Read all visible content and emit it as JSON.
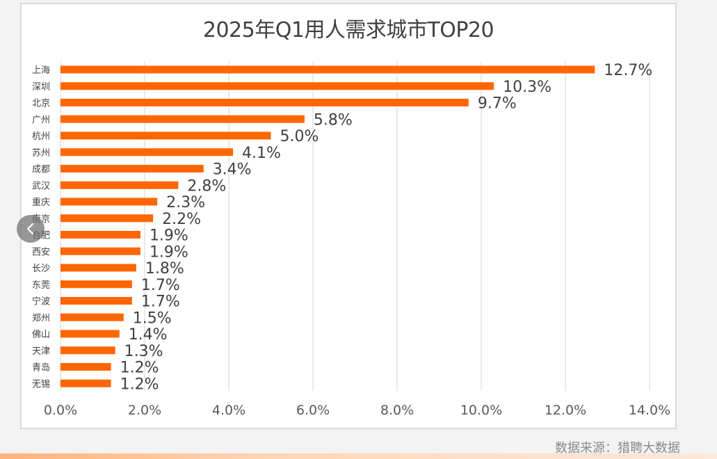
{
  "source_note": "数据来源：猎聘大数据",
  "chart_data": {
    "type": "bar",
    "orientation": "horizontal",
    "title": "2025年Q1用人需求城市TOP20",
    "categories": [
      "上海",
      "深圳",
      "北京",
      "广州",
      "杭州",
      "苏州",
      "成都",
      "武汉",
      "重庆",
      "南京",
      "合肥",
      "西安",
      "长沙",
      "东莞",
      "宁波",
      "郑州",
      "佛山",
      "天津",
      "青岛",
      "无锡"
    ],
    "values": [
      12.7,
      10.3,
      9.7,
      5.8,
      5.0,
      4.1,
      3.4,
      2.8,
      2.3,
      2.2,
      1.9,
      1.9,
      1.8,
      1.7,
      1.7,
      1.5,
      1.4,
      1.3,
      1.2,
      1.2
    ],
    "value_labels": [
      "12.7%",
      "10.3%",
      "9.7%",
      "5.8%",
      "5.0%",
      "4.1%",
      "3.4%",
      "2.8%",
      "2.3%",
      "2.2%",
      "1.9%",
      "1.9%",
      "1.8%",
      "1.7%",
      "1.7%",
      "1.5%",
      "1.4%",
      "1.3%",
      "1.2%",
      "1.2%"
    ],
    "x_ticks": [
      0,
      2,
      4,
      6,
      8,
      10,
      12,
      14
    ],
    "x_tick_labels": [
      "0.0%",
      "2.0%",
      "4.0%",
      "6.0%",
      "8.0%",
      "10.0%",
      "12.0%",
      "14.0%"
    ],
    "xlim": [
      0,
      14
    ],
    "grid": "vertical",
    "legend": "none",
    "bar_color": "#ff6600"
  }
}
